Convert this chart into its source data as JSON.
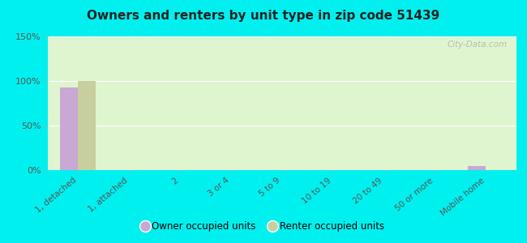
{
  "title": "Owners and renters by unit type in zip code 51439",
  "categories": [
    "1, detached",
    "1, attached",
    "2",
    "3 or 4",
    "5 to 9",
    "10 to 19",
    "20 to 49",
    "50 or more",
    "Mobile home"
  ],
  "owner_values": [
    93,
    0,
    0,
    0,
    0,
    0,
    0,
    0,
    5
  ],
  "renter_values": [
    100,
    0,
    0,
    0,
    0,
    0,
    0,
    0,
    0
  ],
  "owner_color": "#c9a8d4",
  "renter_color": "#c8cf9e",
  "background_color": "#dff5d0",
  "outer_background": "#00f0f0",
  "ylim": [
    0,
    150
  ],
  "yticks": [
    0,
    50,
    100,
    150
  ],
  "ytick_labels": [
    "0%",
    "50%",
    "100%",
    "150%"
  ],
  "bar_width": 0.35,
  "legend_owner": "Owner occupied units",
  "legend_renter": "Renter occupied units",
  "watermark": "City-Data.com"
}
